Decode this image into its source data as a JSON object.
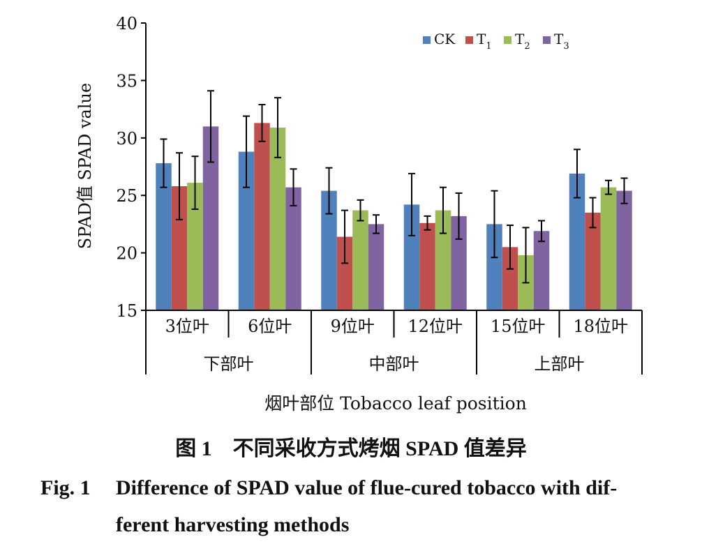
{
  "chart_data": {
    "type": "bar",
    "ylabel": "SPAD值 SPAD value",
    "xlabel": "烟叶部位 Tobacco leaf position",
    "ylim": [
      15,
      40
    ],
    "yticks": [
      15,
      20,
      25,
      30,
      35,
      40
    ],
    "categories": [
      "3位叶",
      "6位叶",
      "9位叶",
      "12位叶",
      "15位叶",
      "18位叶"
    ],
    "groups": [
      {
        "label": "下部叶",
        "categories": [
          "3位叶",
          "6位叶"
        ]
      },
      {
        "label": "中部叶",
        "categories": [
          "9位叶",
          "12位叶"
        ]
      },
      {
        "label": "上部叶",
        "categories": [
          "15位叶",
          "18位叶"
        ]
      }
    ],
    "series": [
      {
        "name": "CK",
        "legend_main": "CK",
        "legend_sub": "",
        "color": "#4f81bd",
        "values": [
          27.8,
          28.8,
          25.4,
          24.2,
          22.5,
          26.9
        ],
        "errors": [
          2.1,
          3.1,
          2.0,
          2.7,
          2.9,
          2.1
        ]
      },
      {
        "name": "T1",
        "legend_main": "T",
        "legend_sub": "1",
        "color": "#c0504d",
        "values": [
          25.8,
          31.3,
          21.4,
          22.6,
          20.5,
          23.5
        ],
        "errors": [
          2.9,
          1.6,
          2.3,
          0.6,
          1.9,
          1.3
        ]
      },
      {
        "name": "T2",
        "legend_main": "T",
        "legend_sub": "2",
        "color": "#9bbb59",
        "values": [
          26.1,
          30.9,
          23.7,
          23.7,
          19.8,
          25.7
        ],
        "errors": [
          2.3,
          2.6,
          0.9,
          2.0,
          2.4,
          0.6
        ]
      },
      {
        "name": "T3",
        "legend_main": "T",
        "legend_sub": "3",
        "color": "#8064a2",
        "values": [
          31.0,
          25.7,
          22.5,
          23.2,
          21.9,
          25.4
        ],
        "errors": [
          3.1,
          1.6,
          0.8,
          2.0,
          0.9,
          1.1
        ]
      }
    ],
    "legend_position": "top-right",
    "grid": false
  },
  "caption": {
    "cn": "图 1　不同采收方式烤烟 SPAD 值差异",
    "en_label": "Fig. 1",
    "en_line1": "Difference of SPAD value of flue-cured tobacco with dif-",
    "en_line2": "ferent harvesting methods"
  }
}
